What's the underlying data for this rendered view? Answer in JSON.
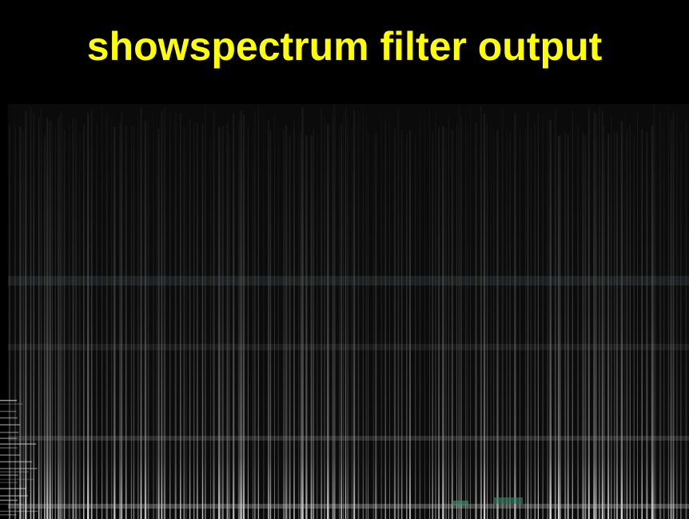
{
  "header": {
    "title": "showspectrum filter output"
  }
}
